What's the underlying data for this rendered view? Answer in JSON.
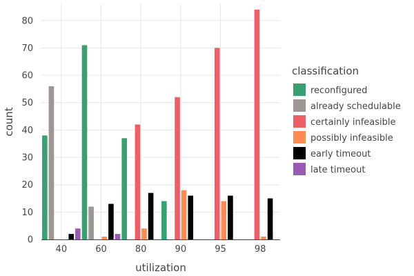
{
  "chart_data": {
    "type": "bar",
    "categories": [
      "40",
      "60",
      "80",
      "90",
      "95",
      "98"
    ],
    "xlabel": "utilization",
    "ylabel": "count",
    "ylim": [
      0,
      86
    ],
    "yticks": [
      0,
      10,
      20,
      30,
      40,
      50,
      60,
      70,
      80
    ],
    "grid": true,
    "legend": {
      "title": "classification",
      "placement": "right"
    },
    "series": [
      {
        "name": "reconfigured",
        "color": "#3aa072",
        "values": [
          38,
          71,
          37,
          14,
          0,
          0
        ]
      },
      {
        "name": "already schedulable",
        "color": "#9e9692",
        "values": [
          56,
          12,
          0,
          0,
          0,
          0
        ]
      },
      {
        "name": "certainly infeasible",
        "color": "#ec5f67",
        "values": [
          0,
          0,
          42,
          52,
          70,
          84
        ]
      },
      {
        "name": "possibly infeasible",
        "color": "#fd8b54",
        "values": [
          0,
          1,
          4,
          18,
          14,
          1
        ]
      },
      {
        "name": "early timeout",
        "color": "#000000",
        "values": [
          2,
          13,
          17,
          16,
          16,
          15
        ]
      },
      {
        "name": "late timeout",
        "color": "#9b59b6",
        "values": [
          4,
          2,
          0,
          0,
          0,
          0
        ]
      }
    ]
  }
}
